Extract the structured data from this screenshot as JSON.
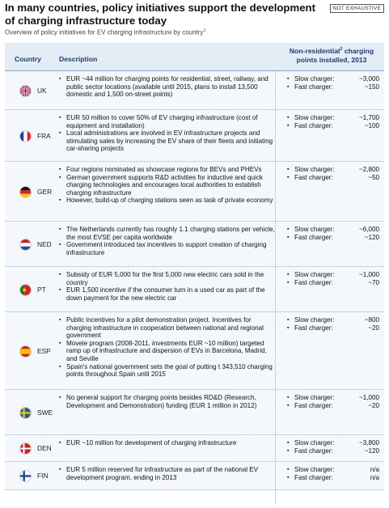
{
  "title": "In many countries, policy initiatives support the development of charging infrastructure today",
  "badge": "NOT EXHAUSTIVE",
  "subtitle": "Overview of policy initiatives for EV charging infrastructure by country",
  "subtitle_footnote": "1",
  "header": {
    "country": "Country",
    "description": "Description",
    "points_a": "Non-residential",
    "points_footnote": "2",
    "points_b": " charging points installed, 2013"
  },
  "rows": [
    {
      "code": "UK",
      "flag": "uk-flag-icon",
      "desc": [
        "EUR ~44 million for charging points for residential, street, railway, and public sector locations (available until 2015, plans to install 13,500 domestic and 1,500 on-street points)"
      ],
      "slow_label": "Slow charger:",
      "slow": "~3,000",
      "fast_label": "Fast charger:",
      "fast": "~150"
    },
    {
      "code": "FRA",
      "flag": "france-flag-icon",
      "desc": [
        "EUR 50 million to cover 50% of EV charging infrastructure (cost of equipment and installation)",
        "Local administrations are involved in EV infrastructure projects and stimulating sales by increasing the EV share of their fleets and initiating car-sharing projects"
      ],
      "slow_label": "Slow charger:",
      "slow": "~1,700",
      "fast_label": "Fast charger:",
      "fast": "~100"
    },
    {
      "code": "GER",
      "flag": "germany-flag-icon",
      "desc": [
        "Four regions nominated as showcase regions for BEVs and PHEVs",
        "German government supports R&D activities for inductive and quick charging technologies and encourages local authorities to establish charging infrastructure",
        "However, build-up of charging stations seen as task of private economy"
      ],
      "slow_label": "Slow charger:",
      "slow": "~2,800",
      "fast_label": "Fast charger:",
      "fast": "~50"
    },
    {
      "code": "NED",
      "flag": "netherlands-flag-icon",
      "desc": [
        "The Netherlands currently has roughly 1.1 charging stations per vehicle, the most EVSE per capita worldwide",
        "Government introduced tax incentives to support creation of charging infrastructure"
      ],
      "slow_label": "Slow charger:",
      "slow": "~6,000",
      "fast_label": "Fast charger:",
      "fast": "~120"
    },
    {
      "code": "PT",
      "flag": "portugal-flag-icon",
      "desc": [
        "Subsidy of EUR 5,000 for the first 5,000 new electric cars sold in the country",
        "EUR 1,500 incentive if the consumer turn in a used car as part of the down payment for the new electric car"
      ],
      "slow_label": "Slow charger:",
      "slow": "~1,000",
      "fast_label": "Fast charger:",
      "fast": "~70"
    },
    {
      "code": "ESP",
      "flag": "spain-flag-icon",
      "desc": [
        "Public incentives for a pilot demonstration project. Incentives for charging infrastructure in cooperation between national and regional government",
        "Movele program (2008-2011, investments EUR ~10 million) targeted ramp up of infrastructure and dispersion of EVs in Barcelona, Madrid, and Seville",
        "Spain's national government  sets the goal of putting t 343,510 charging points throughout Spain until 2015"
      ],
      "slow_label": "Slow charger:",
      "slow": "~800",
      "fast_label": "Fast charger:",
      "fast": "~20"
    },
    {
      "code": "SWE",
      "flag": "sweden-flag-icon",
      "desc": [
        "No general support for charging points besides RD&D (Research, Development and Demonstration) funding (EUR 1 million in 2012)"
      ],
      "slow_label": "Slow charger:",
      "slow": "~1,000",
      "fast_label": "Fast charger:",
      "fast": "~20"
    },
    {
      "code": "DEN",
      "flag": "denmark-flag-icon",
      "desc": [
        "EUR ~10 million for development of charging infrastructure"
      ],
      "slow_label": "Slow charger:",
      "slow": "~3,800",
      "fast_label": "Fast charger:",
      "fast": "~120"
    },
    {
      "code": "FIN",
      "flag": "finland-flag-icon",
      "desc": [
        "EUR 5 million reserved for infrastructure as part of the national EV development program, ending in 2013"
      ],
      "slow_label": "Slow charger:",
      "slow": "n/a",
      "fast_label": "Fast charger:",
      "fast": "n/a"
    }
  ]
}
